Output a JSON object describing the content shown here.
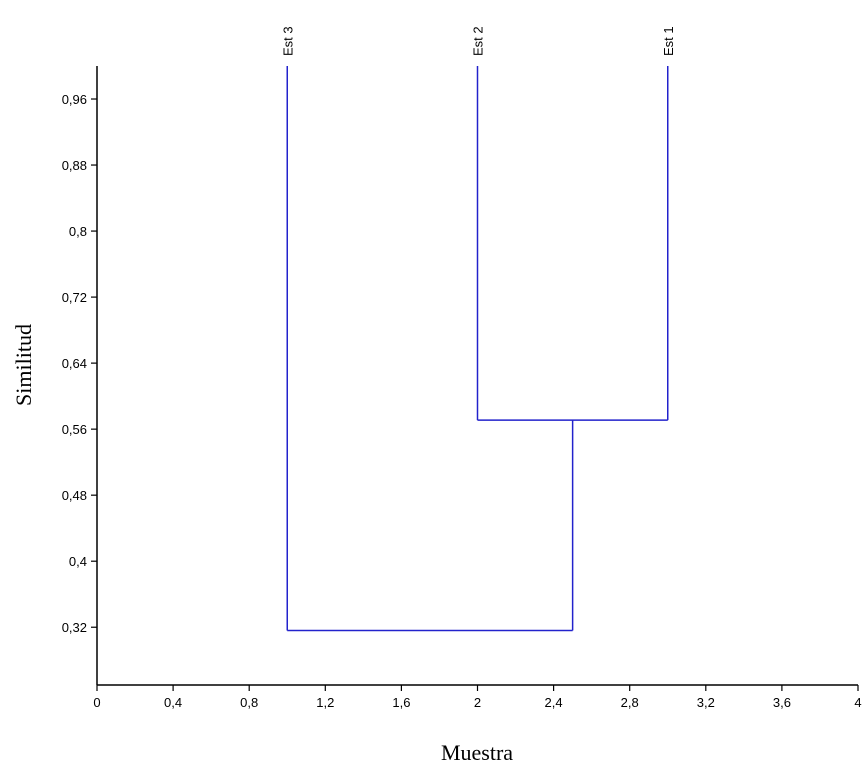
{
  "chart_data": {
    "type": "dendrogram",
    "title": "",
    "xlabel": "Muestra",
    "ylabel": "Similitud",
    "xlim": [
      0,
      4
    ],
    "ylim": [
      0.25,
      1.0
    ],
    "x_ticks": [
      "0",
      "0,4",
      "0,8",
      "1,2",
      "1,6",
      "2",
      "2,4",
      "2,8",
      "3,2",
      "3,6",
      "4"
    ],
    "y_ticks": [
      "0,32",
      "0,4",
      "0,48",
      "0,56",
      "0,64",
      "0,72",
      "0,8",
      "0,88",
      "0,96"
    ],
    "leaves": [
      {
        "label": "Est 3",
        "x": 1.0
      },
      {
        "label": "Est 2",
        "x": 2.0
      },
      {
        "label": "Est 1",
        "x": 3.0
      }
    ],
    "merges": [
      {
        "left": "Est 2",
        "right": "Est 1",
        "similarity": 0.571,
        "node_x": 2.5
      },
      {
        "left": "Est 3",
        "right": "Est 2 + Est 1",
        "similarity": 0.316,
        "node_x": 1.75
      }
    ],
    "line_color": "#2222cc",
    "axis_color": "#000000",
    "grid": false,
    "legend": "none"
  }
}
